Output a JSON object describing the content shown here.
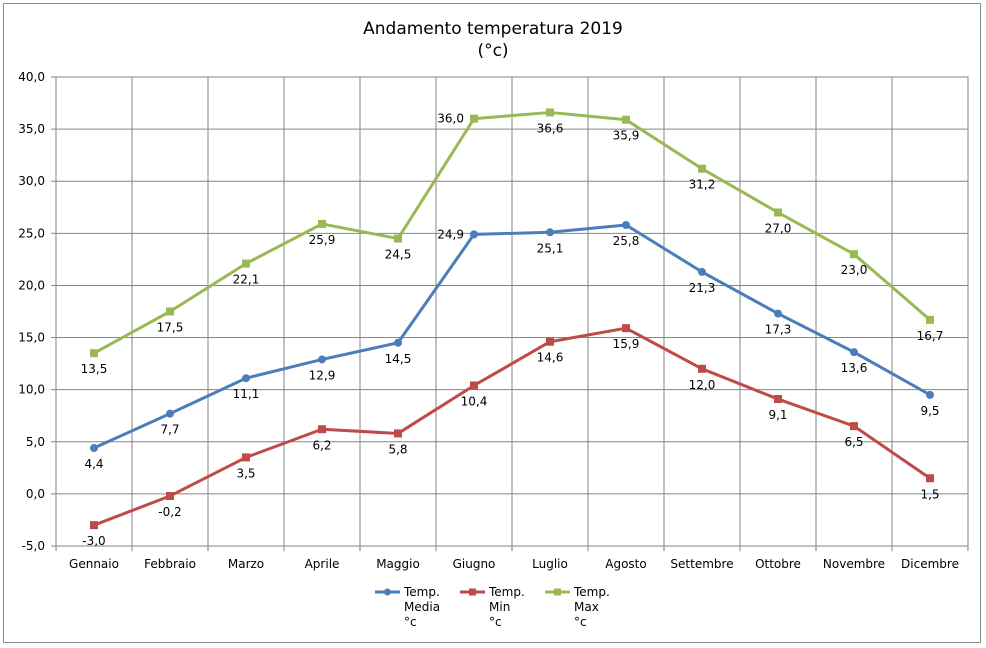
{
  "chart_data": {
    "type": "line",
    "title": "Andamento temperatura 2019",
    "subtitle": "(°c)",
    "categories": [
      "Gennaio",
      "Febbraio",
      "Marzo",
      "Aprile",
      "Maggio",
      "Giugno",
      "Luglio",
      "Agosto",
      "Settembre",
      "Ottobre",
      "Novembre",
      "Dicembre"
    ],
    "ylim": [
      -5.0,
      40.0
    ],
    "yticks": [
      "-5,0",
      "0,0",
      "5,0",
      "10,0",
      "15,0",
      "20,0",
      "25,0",
      "30,0",
      "35,0",
      "40,0"
    ],
    "grid": true,
    "legend_position": "bottom",
    "series": [
      {
        "name": "Temp. Media °c",
        "legend_lines": [
          "Temp.",
          "Media",
          "°c"
        ],
        "color": "#4a7ebb",
        "marker": "circle",
        "values": [
          4.4,
          7.7,
          11.1,
          12.9,
          14.5,
          24.9,
          25.1,
          25.8,
          21.3,
          17.3,
          13.6,
          9.5
        ],
        "labels": [
          "4,4",
          "7,7",
          "11,1",
          "12,9",
          "14,5",
          "24,9",
          "25,1",
          "25,8",
          "21,3",
          "17,3",
          "13,6",
          "9,5"
        ]
      },
      {
        "name": "Temp. Min °c",
        "legend_lines": [
          "Temp.",
          "Min",
          "°c"
        ],
        "color": "#be4b48",
        "marker": "square",
        "values": [
          -3.0,
          -0.2,
          3.5,
          6.2,
          5.8,
          10.4,
          14.6,
          15.9,
          12.0,
          9.1,
          6.5,
          1.5
        ],
        "labels": [
          "-3,0",
          "-0,2",
          "3,5",
          "6,2",
          "5,8",
          "10,4",
          "14,6",
          "15,9",
          "12,0",
          "9,1",
          "6,5",
          "1,5"
        ]
      },
      {
        "name": "Temp. Max °c",
        "legend_lines": [
          "Temp.",
          "Max",
          "°c"
        ],
        "color": "#98b954",
        "marker": "square",
        "values": [
          13.5,
          17.5,
          22.1,
          25.9,
          24.5,
          36.0,
          36.6,
          35.9,
          31.2,
          27.0,
          23.0,
          16.7
        ],
        "labels": [
          "13,5",
          "17,5",
          "22,1",
          "25,9",
          "24,5",
          "36,0",
          "36,6",
          "35,9",
          "31,2",
          "27,0",
          "23,0",
          "16,7"
        ]
      }
    ]
  }
}
